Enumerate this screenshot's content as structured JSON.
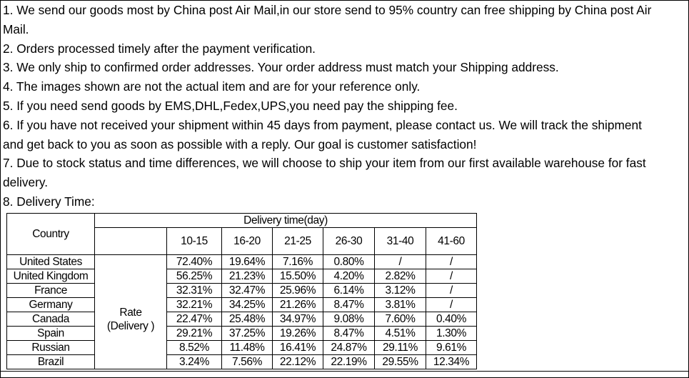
{
  "notes": [
    "1. We send our goods most by China post Air Mail,in our store send to 95% country can free shipping by China post Air",
    "Mail.",
    "2. Orders processed timely after the payment verification.",
    "3. We only ship to confirmed order addresses. Your order address must match your Shipping address.",
    "4. The images shown are not the actual item and are for your reference only.",
    "5. If you need send goods by EMS,DHL,Fedex,UPS,you need pay the shipping fee.",
    "6. If you have not received your shipment within 45 days from payment, please contact us. We will track the shipment",
    "and get back to you as soon as possible with a reply. Our goal is customer satisfaction!",
    "7. Due to stock status and time differences, we will choose to ship your item from our first available warehouse for fast",
    "delivery.",
    "8. Delivery Time:"
  ],
  "table": {
    "country_header": "Country",
    "group_header": "Delivery time(day)",
    "rate_label_1": "Rate",
    "rate_label_2": "(Delivery )",
    "columns": [
      "10-15",
      "16-20",
      "21-25",
      "26-30",
      "31-40",
      "41-60"
    ],
    "rows": [
      {
        "country": "United States",
        "values": [
          "72.40%",
          "19.64%",
          "7.16%",
          "0.80%",
          "/",
          "/"
        ]
      },
      {
        "country": "United Kingdom",
        "values": [
          "56.25%",
          "21.23%",
          "15.50%",
          "4.20%",
          "2.82%",
          "/"
        ]
      },
      {
        "country": "France",
        "values": [
          "32.31%",
          "32.47%",
          "25.96%",
          "6.14%",
          "3.12%",
          "/"
        ]
      },
      {
        "country": "Germany",
        "values": [
          "32.21%",
          "34.25%",
          "21.26%",
          "8.47%",
          "3.81%",
          "/"
        ]
      },
      {
        "country": "Canada",
        "values": [
          "22.47%",
          "25.48%",
          "34.97%",
          "9.08%",
          "7.60%",
          "0.40%"
        ]
      },
      {
        "country": "Spain",
        "values": [
          "29.21%",
          "37.25%",
          "19.26%",
          "8.47%",
          "4.51%",
          "1.30%"
        ]
      },
      {
        "country": "Russian",
        "values": [
          "8.52%",
          "11.48%",
          "16.41%",
          "24.87%",
          "29.11%",
          "9.61%"
        ]
      },
      {
        "country": "Brazil",
        "values": [
          "3.24%",
          "7.56%",
          "22.12%",
          "22.19%",
          "29.55%",
          "12.34%"
        ]
      }
    ]
  }
}
